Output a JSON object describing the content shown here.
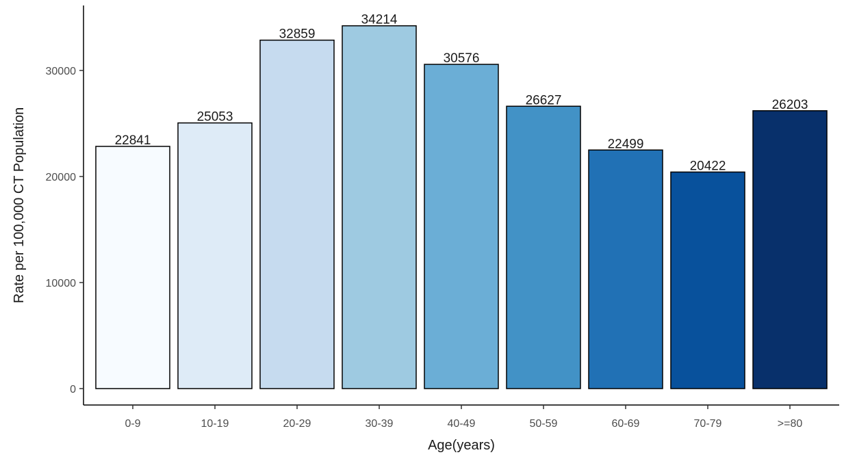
{
  "chart_data": {
    "type": "bar",
    "title": "",
    "xlabel": "Age(years)",
    "ylabel": "Rate per 100,000 CT Population",
    "categories": [
      "0-9",
      "10-19",
      "20-29",
      "30-39",
      "40-49",
      "50-59",
      "60-69",
      "70-79",
      ">=80"
    ],
    "values": [
      22841,
      25053,
      32859,
      34214,
      30576,
      26627,
      22499,
      20422,
      26203
    ],
    "data_labels": [
      "22841",
      "25053",
      "32859",
      "34214",
      "30576",
      "26627",
      "22499",
      "20422",
      "26203"
    ],
    "ylim": [
      0,
      36000
    ],
    "yticks": [
      0,
      10000,
      20000,
      30000
    ],
    "ytick_labels": [
      "0",
      "10000",
      "20000",
      "30000"
    ],
    "colors": [
      "#f7fbff",
      "#deebf7",
      "#c6dbef",
      "#9ecae1",
      "#6baed6",
      "#4292c6",
      "#2171b5",
      "#08519c",
      "#08306b"
    ],
    "bar_outline": "#000000",
    "grid": false,
    "legend": "none"
  }
}
